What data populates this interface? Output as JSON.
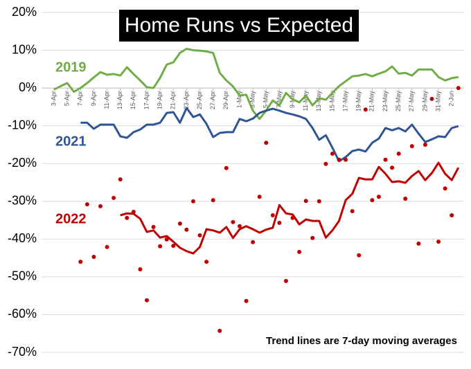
{
  "chart_data": {
    "type": "line",
    "title": "Home Runs vs Expected",
    "note": "Trend lines are 7-day moving averages",
    "categories": [
      "3-Apr",
      null,
      "5-Apr",
      null,
      "7-Apr",
      null,
      "9-Apr",
      null,
      "11-Apr",
      null,
      "13-Apr",
      null,
      "15-Apr",
      null,
      "17-Apr",
      null,
      "19-Apr",
      null,
      "21-Apr",
      null,
      "23-Apr",
      null,
      "25-Apr",
      null,
      "27-Apr",
      null,
      "29-Apr",
      null,
      "1-May",
      null,
      "3-May",
      null,
      "5-May",
      null,
      "7-May",
      null,
      "9-May",
      null,
      "11-May",
      null,
      "13-May",
      null,
      "15-May",
      null,
      "17-May",
      null,
      "19-May",
      null,
      "21-May",
      null,
      "23-May",
      null,
      "25-May",
      null,
      "27-May",
      null,
      "29-May",
      null,
      "31-May",
      null,
      "2-Jun",
      null
    ],
    "series": [
      {
        "name": "2019",
        "color": "#70ad47",
        "style": "line",
        "values": [
          -0.4,
          0.5,
          1.3,
          -1,
          0,
          1.3,
          2.8,
          4.2,
          3.5,
          3.7,
          3.3,
          5.5,
          3.7,
          2,
          0.2,
          0,
          2.7,
          6.2,
          6.8,
          9.3,
          10.4,
          10,
          9.9,
          9.7,
          9.3,
          4,
          2,
          0.4,
          -2,
          -1.8,
          -6,
          -8.2,
          -6,
          -3.3,
          -4.6,
          -1.3,
          -3,
          -3.8,
          -2,
          -4.6,
          -2.7,
          -3.1,
          -1.3,
          0.5,
          1.8,
          3.1,
          3.3,
          3.7,
          3.1,
          3.8,
          4.4,
          5.7,
          3.8,
          4,
          3.3,
          4.9,
          4.9,
          4.9,
          2.9,
          2,
          2.6,
          2.9
        ]
      },
      {
        "name": "2021",
        "color": "#2f5597",
        "style": "line",
        "values": [
          null,
          null,
          null,
          null,
          -9.2,
          -9.2,
          -10.8,
          -9.7,
          -9.7,
          -9.7,
          -12.8,
          -13.2,
          -11.7,
          -11,
          -9.7,
          -9.7,
          -9.2,
          -6.6,
          -6.4,
          -9.2,
          -5.3,
          -7.7,
          -7,
          -9.5,
          -13,
          -11.9,
          -11.7,
          -11.7,
          -8.2,
          -8.8,
          -8.1,
          -6.6,
          -6,
          -5.5,
          -6,
          -6.6,
          -7,
          -7.5,
          -8.2,
          -10.6,
          -13.7,
          -12.5,
          -15.8,
          -19.4,
          -18.3,
          -16.7,
          -16.3,
          -16.8,
          -14.5,
          -13.4,
          -10.6,
          -11.2,
          -10.6,
          -11.5,
          -9.7,
          -12.1,
          -14.3,
          -13.6,
          -12.8,
          -13,
          -10.6,
          -10.1
        ]
      },
      {
        "name": "2022",
        "color": "#c00000",
        "style": "line",
        "values": [
          null,
          null,
          null,
          null,
          null,
          null,
          null,
          null,
          null,
          null,
          -33.7,
          -33.2,
          -33.3,
          -34.6,
          -38.1,
          -37.7,
          -39.6,
          -39.2,
          -40.7,
          -42.3,
          -43.2,
          -43.8,
          -42.1,
          -37.4,
          -37.7,
          -38.3,
          -36.8,
          -39.7,
          -37.4,
          -36.6,
          -37.4,
          -38.3,
          -37.5,
          -37,
          -31,
          -33.2,
          -33.5,
          -36.1,
          -34.8,
          -35.2,
          -35.2,
          -39.6,
          -37.7,
          -35.2,
          -29.7,
          -28,
          -23.8,
          -24.2,
          -24.2,
          -20.9,
          -22.7,
          -24.9,
          -24.7,
          -25.1,
          -23.3,
          -22,
          -24.4,
          -22.5,
          -19.8,
          -22.7,
          -24.4,
          -21.1
        ]
      },
      {
        "color": "#c00000",
        "style": "markers",
        "values": [
          null,
          null,
          null,
          null,
          -46,
          -30.8,
          -44.7,
          -31.3,
          -42.1,
          -29.1,
          -24.2,
          -34.4,
          -32.8,
          -48,
          -56.2,
          -36.8,
          -41.9,
          -40.1,
          -41.8,
          -35.9,
          -37.5,
          -30,
          -39,
          -46,
          -29.7,
          -64.3,
          -21.2,
          -35.5,
          -36.6,
          -56.4,
          -40.8,
          -28.8,
          -14.5,
          -33.7,
          -35.7,
          -51.1,
          -34.4,
          -43.4,
          -29.9,
          -39.7,
          -30,
          -20.1,
          -17.4,
          -19,
          -19,
          -32.6,
          -44.3,
          -5.7,
          -29.7,
          -28.8,
          -19,
          -21.1,
          -17.4,
          -29.3,
          -15.4,
          -41.2,
          -15,
          -2.9,
          -40.7,
          -26.6,
          -33.7,
          0
        ]
      }
    ],
    "ylim": [
      -70,
      20
    ],
    "yticks": [
      {
        "value": -70,
        "label": "-70%"
      },
      {
        "value": -60,
        "label": "-60%"
      },
      {
        "value": -50,
        "label": "-50%"
      },
      {
        "value": -40,
        "label": "-40%"
      },
      {
        "value": -30,
        "label": "-30%"
      },
      {
        "value": -20,
        "label": "-20%"
      },
      {
        "value": -10,
        "label": "-10%"
      },
      {
        "value": 0,
        "label": "0%"
      },
      {
        "value": 10,
        "label": "10%"
      },
      {
        "value": 20,
        "label": "20%"
      }
    ],
    "grid": true
  }
}
